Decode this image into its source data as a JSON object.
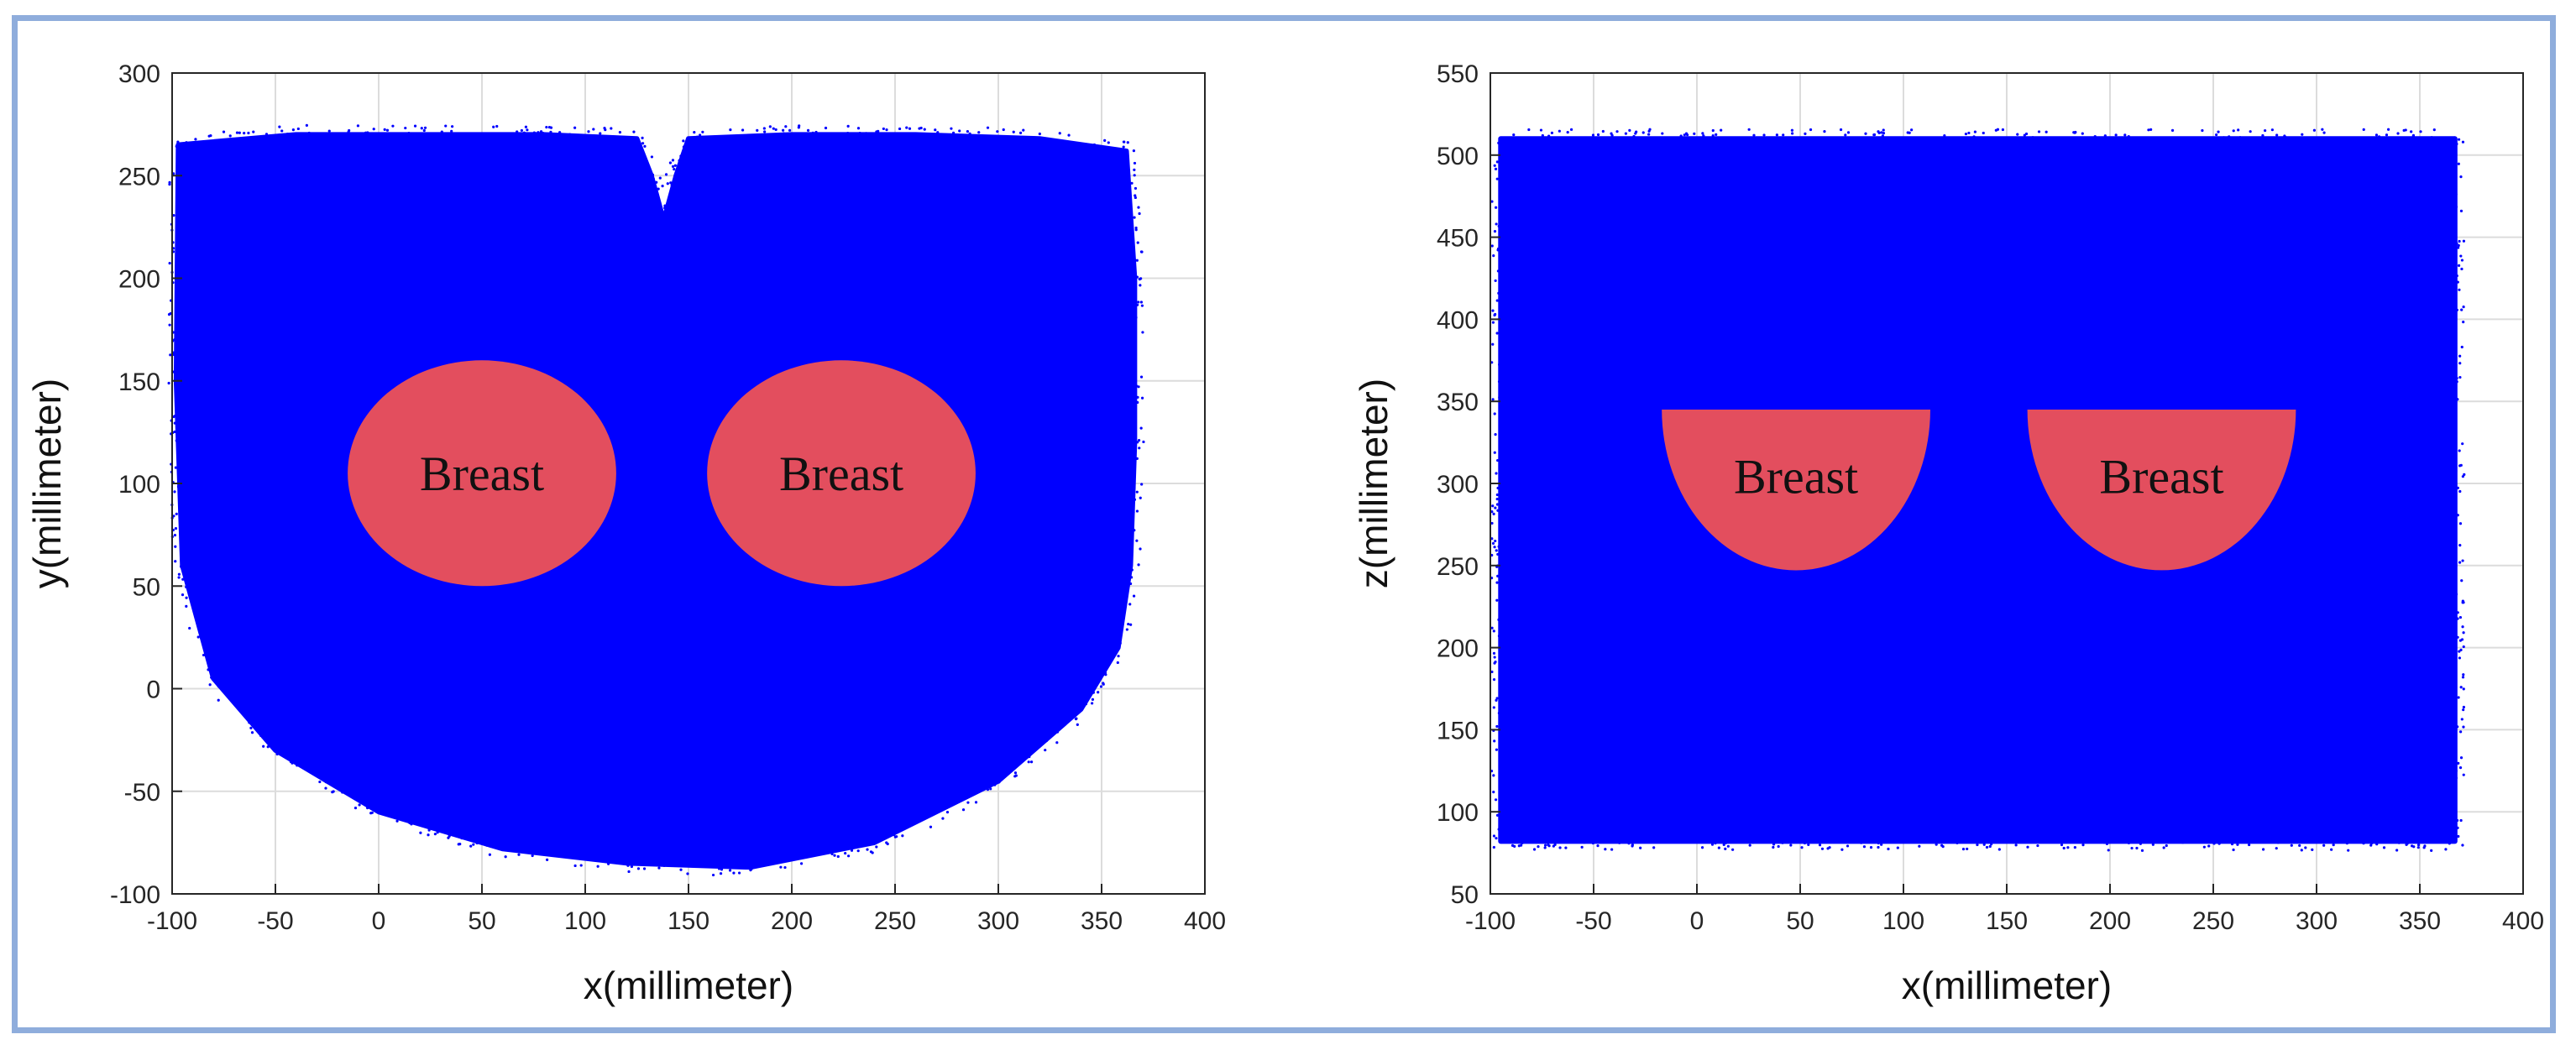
{
  "chart_data": [
    {
      "type": "scatter",
      "view": "top",
      "title": "",
      "xlabel": "x(millimeter)",
      "ylabel": "y(millimeter)",
      "xlim": [
        -100,
        400
      ],
      "ylim": [
        -100,
        300
      ],
      "xticks": [
        -100,
        -50,
        0,
        50,
        100,
        150,
        200,
        250,
        300,
        350,
        400
      ],
      "yticks": [
        -100,
        -50,
        0,
        50,
        100,
        150,
        200,
        250,
        300
      ],
      "grid": true,
      "point_color": "#0000FF",
      "point_cloud_outline": [
        [
          -97,
          265
        ],
        [
          -40,
          270
        ],
        [
          20,
          270
        ],
        [
          80,
          270
        ],
        [
          125,
          268
        ],
        [
          132,
          250
        ],
        [
          138,
          228
        ],
        [
          144,
          250
        ],
        [
          150,
          268
        ],
        [
          200,
          270
        ],
        [
          260,
          270
        ],
        [
          320,
          268
        ],
        [
          362,
          262
        ],
        [
          366,
          200
        ],
        [
          366,
          120
        ],
        [
          364,
          60
        ],
        [
          358,
          20
        ],
        [
          340,
          -10
        ],
        [
          300,
          -45
        ],
        [
          240,
          -75
        ],
        [
          180,
          -87
        ],
        [
          120,
          -85
        ],
        [
          60,
          -78
        ],
        [
          0,
          -60
        ],
        [
          -50,
          -30
        ],
        [
          -80,
          5
        ],
        [
          -95,
          60
        ],
        [
          -98,
          150
        ]
      ],
      "regions": [
        {
          "label": "Breast",
          "shape": "ellipse",
          "center": [
            50,
            105
          ],
          "radius": [
            65,
            55
          ],
          "color": "#E34E5E"
        },
        {
          "label": "Breast",
          "shape": "ellipse",
          "center": [
            224,
            105
          ],
          "radius": [
            65,
            55
          ],
          "color": "#E34E5E"
        }
      ]
    },
    {
      "type": "scatter",
      "view": "side",
      "title": "",
      "xlabel": "x(millimeter)",
      "ylabel": "z(millimeter)",
      "xlim": [
        -100,
        400
      ],
      "ylim": [
        50,
        550
      ],
      "xticks": [
        -100,
        -50,
        0,
        50,
        100,
        150,
        200,
        250,
        300,
        350,
        400
      ],
      "yticks": [
        50,
        100,
        150,
        200,
        250,
        300,
        350,
        400,
        450,
        500,
        550
      ],
      "grid": true,
      "point_color": "#0000FF",
      "point_cloud_outline": [
        [
          -95,
          510
        ],
        [
          367,
          510
        ],
        [
          367,
          82
        ],
        [
          -95,
          82
        ]
      ],
      "regions": [
        {
          "label": "Breast",
          "shape": "half-disc",
          "center": [
            48,
            345
          ],
          "radius": [
            65,
            98
          ],
          "color": "#E34E5E"
        },
        {
          "label": "Breast",
          "shape": "half-disc",
          "center": [
            225,
            345
          ],
          "radius": [
            65,
            98
          ],
          "color": "#E34E5E"
        }
      ]
    }
  ]
}
